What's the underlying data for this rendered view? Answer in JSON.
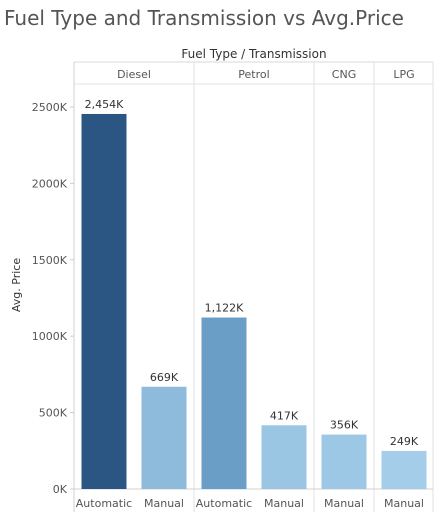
{
  "chart_data": {
    "type": "bar",
    "title": "Fuel Type and Transmission vs Avg.Price",
    "header": "Fuel Type / Transmission",
    "ylabel": "Avg. Price",
    "ylim": [
      0,
      2650
    ],
    "yticks": [
      0,
      500,
      1000,
      1500,
      2000,
      2500
    ],
    "ytick_labels": [
      "0K",
      "500K",
      "1000K",
      "1500K",
      "2000K",
      "2500K"
    ],
    "groups": [
      {
        "name": "Diesel",
        "bars": [
          {
            "transmission": "Automatic",
            "value": 2454,
            "label": "2,454K",
            "color": "#2b5683"
          },
          {
            "transmission": "Manual",
            "value": 669,
            "label": "669K",
            "color": "#8ebadb"
          }
        ]
      },
      {
        "name": "Petrol",
        "bars": [
          {
            "transmission": "Automatic",
            "value": 1122,
            "label": "1,122K",
            "color": "#6b9ec7"
          },
          {
            "transmission": "Manual",
            "value": 417,
            "label": "417K",
            "color": "#9ac6e4"
          }
        ]
      },
      {
        "name": "CNG",
        "bars": [
          {
            "transmission": "Manual",
            "value": 356,
            "label": "356K",
            "color": "#9cc8e5"
          }
        ]
      },
      {
        "name": "LPG",
        "bars": [
          {
            "transmission": "Manual",
            "value": 249,
            "label": "249K",
            "color": "#a3cde8"
          }
        ]
      }
    ]
  }
}
